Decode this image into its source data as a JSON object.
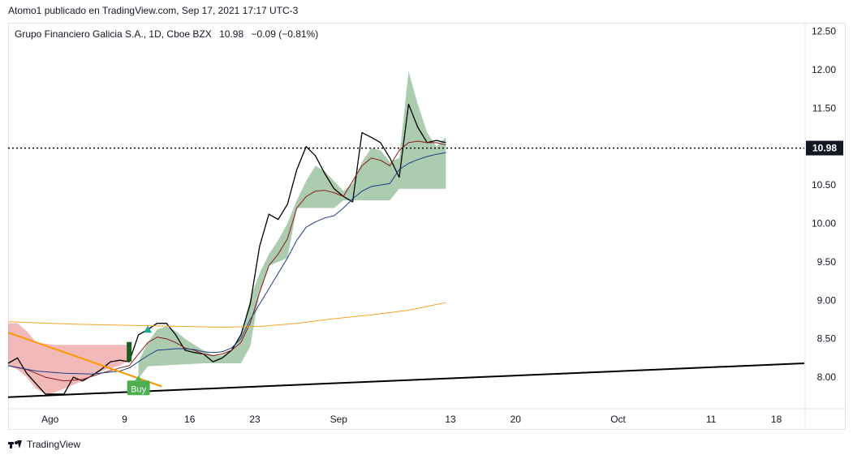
{
  "header": {
    "published_by": "Atomo1 publicado en TradingView.com, Sep 17, 2021 17:17 UTC-3"
  },
  "legend": {
    "symbol": "Grupo Financiero Galicia S.A., 1D, Cboe BZX",
    "last": "10.98",
    "change": "−0.09 (−0.81%)"
  },
  "footer": {
    "brand": "TradingView",
    "logo_icon": "tradingview-logo-icon"
  },
  "chart_data": {
    "type": "line",
    "ylim": [
      7.6,
      12.6
    ],
    "y_ticks": [
      "8.00",
      "8.50",
      "9.00",
      "9.50",
      "10.00",
      "10.50",
      "11.00",
      "11.50",
      "12.00",
      "12.50"
    ],
    "x_tick_labels": [
      {
        "label": "Ago",
        "day": 0
      },
      {
        "label": "9",
        "day": 8
      },
      {
        "label": "16",
        "day": 15
      },
      {
        "label": "23",
        "day": 22
      },
      {
        "label": "Sep",
        "day": 31
      },
      {
        "label": "13",
        "day": 43
      },
      {
        "label": "20",
        "day": 50
      },
      {
        "label": "Oct",
        "day": 61
      },
      {
        "label": "11",
        "day": 71
      },
      {
        "label": "18",
        "day": 78
      }
    ],
    "xlim": [
      -4.5,
      81
    ],
    "last_price": {
      "value": 10.98,
      "label": "10.98",
      "color": "#131722"
    },
    "series": [
      {
        "role": "price",
        "color": "#000000",
        "points": [
          [
            -4.5,
            8.18
          ],
          [
            -3.5,
            8.25
          ],
          [
            -2.5,
            8.05
          ],
          [
            -0.5,
            7.78
          ],
          [
            1.5,
            7.78
          ],
          [
            2.5,
            8.0
          ],
          [
            3.5,
            7.95
          ],
          [
            4.5,
            8.02
          ],
          [
            5.5,
            8.1
          ],
          [
            6.5,
            8.2
          ],
          [
            7.5,
            8.22
          ],
          [
            8.5,
            8.2
          ],
          [
            9.5,
            8.55
          ],
          [
            10.5,
            8.62
          ],
          [
            11.5,
            8.7
          ],
          [
            12.5,
            8.7
          ],
          [
            13.5,
            8.55
          ],
          [
            14.5,
            8.35
          ],
          [
            15.5,
            8.32
          ],
          [
            16.5,
            8.3
          ],
          [
            17.5,
            8.2
          ],
          [
            18.5,
            8.25
          ],
          [
            19.5,
            8.35
          ],
          [
            20.5,
            8.55
          ],
          [
            21.5,
            8.95
          ],
          [
            22.5,
            9.7
          ],
          [
            23.5,
            10.12
          ],
          [
            24.5,
            10.05
          ],
          [
            25.5,
            10.25
          ],
          [
            26.5,
            10.7
          ],
          [
            27.5,
            11.0
          ],
          [
            28.5,
            10.88
          ],
          [
            29.5,
            10.65
          ],
          [
            30.5,
            10.45
          ],
          [
            31.5,
            10.35
          ],
          [
            32.5,
            10.28
          ],
          [
            33.5,
            11.18
          ],
          [
            34.5,
            11.12
          ],
          [
            35.5,
            11.05
          ],
          [
            36.5,
            10.85
          ],
          [
            37.5,
            10.6
          ],
          [
            38.5,
            11.55
          ],
          [
            39.5,
            11.25
          ],
          [
            40.5,
            11.05
          ],
          [
            41.5,
            11.08
          ],
          [
            42.5,
            11.05
          ]
        ]
      },
      {
        "role": "moving-average-fast",
        "color": "#8b1a1a",
        "points": [
          [
            -4.5,
            8.15
          ],
          [
            -2.5,
            8.1
          ],
          [
            -0.5,
            8.0
          ],
          [
            1.5,
            7.95
          ],
          [
            3.5,
            7.97
          ],
          [
            5.5,
            8.05
          ],
          [
            7.5,
            8.12
          ],
          [
            8.5,
            8.15
          ],
          [
            9.5,
            8.3
          ],
          [
            10.5,
            8.45
          ],
          [
            11.5,
            8.52
          ],
          [
            12.5,
            8.5
          ],
          [
            13.5,
            8.45
          ],
          [
            14.5,
            8.38
          ],
          [
            15.5,
            8.35
          ],
          [
            16.5,
            8.3
          ],
          [
            17.5,
            8.28
          ],
          [
            18.5,
            8.3
          ],
          [
            19.5,
            8.35
          ],
          [
            20.5,
            8.45
          ],
          [
            21.5,
            8.7
          ],
          [
            22.5,
            9.1
          ],
          [
            23.5,
            9.45
          ],
          [
            24.5,
            9.6
          ],
          [
            25.5,
            9.8
          ],
          [
            26.5,
            10.2
          ],
          [
            27.5,
            10.35
          ],
          [
            28.5,
            10.42
          ],
          [
            29.5,
            10.43
          ],
          [
            30.5,
            10.4
          ],
          [
            31.5,
            10.35
          ],
          [
            32.5,
            10.55
          ],
          [
            33.5,
            10.75
          ],
          [
            34.5,
            10.85
          ],
          [
            35.5,
            10.82
          ],
          [
            36.5,
            10.75
          ],
          [
            37.5,
            10.95
          ],
          [
            38.5,
            11.05
          ],
          [
            39.5,
            11.07
          ],
          [
            40.5,
            11.05
          ],
          [
            41.5,
            11.05
          ],
          [
            42.5,
            11.02
          ]
        ]
      },
      {
        "role": "moving-average-slow",
        "color": "#1f3c88",
        "points": [
          [
            -4.5,
            8.15
          ],
          [
            -1.5,
            8.08
          ],
          [
            1.5,
            8.05
          ],
          [
            4.5,
            8.04
          ],
          [
            7.5,
            8.08
          ],
          [
            8.5,
            8.12
          ],
          [
            9.5,
            8.2
          ],
          [
            10.5,
            8.28
          ],
          [
            11.5,
            8.35
          ],
          [
            12.5,
            8.36
          ],
          [
            13.5,
            8.37
          ],
          [
            14.5,
            8.37
          ],
          [
            15.5,
            8.36
          ],
          [
            16.5,
            8.33
          ],
          [
            17.5,
            8.32
          ],
          [
            18.5,
            8.33
          ],
          [
            19.5,
            8.38
          ],
          [
            20.5,
            8.5
          ],
          [
            21.5,
            8.75
          ],
          [
            22.5,
            8.95
          ],
          [
            23.5,
            9.15
          ],
          [
            24.5,
            9.35
          ],
          [
            25.5,
            9.55
          ],
          [
            26.5,
            9.78
          ],
          [
            27.5,
            9.95
          ],
          [
            28.5,
            10.02
          ],
          [
            29.5,
            10.07
          ],
          [
            30.5,
            10.1
          ],
          [
            31.5,
            10.2
          ],
          [
            32.5,
            10.32
          ],
          [
            33.5,
            10.42
          ],
          [
            34.5,
            10.48
          ],
          [
            35.5,
            10.5
          ],
          [
            36.5,
            10.52
          ],
          [
            37.5,
            10.7
          ],
          [
            38.5,
            10.78
          ],
          [
            39.5,
            10.83
          ],
          [
            40.5,
            10.87
          ],
          [
            41.5,
            10.9
          ],
          [
            42.5,
            10.92
          ]
        ]
      },
      {
        "role": "moving-average-long",
        "color": "#f7a428",
        "points": [
          [
            -4.5,
            8.72
          ],
          [
            2.5,
            8.69
          ],
          [
            10.5,
            8.67
          ],
          [
            18.5,
            8.65
          ],
          [
            22.5,
            8.66
          ],
          [
            26.5,
            8.7
          ],
          [
            30.5,
            8.76
          ],
          [
            34.5,
            8.81
          ],
          [
            38.5,
            8.87
          ],
          [
            42.5,
            8.97
          ]
        ]
      },
      {
        "role": "trendline-support",
        "color": "#000000",
        "points": [
          [
            -4.5,
            7.74
          ],
          [
            81,
            8.18
          ]
        ]
      },
      {
        "role": "trendline-resistance",
        "color": "#ff9800",
        "points": [
          [
            -4.5,
            8.58
          ],
          [
            12,
            7.88
          ]
        ]
      }
    ],
    "bands": [
      {
        "role": "bullish-cloud-1",
        "color": "#5a9a60",
        "upper": [
          [
            9.5,
            8.2
          ],
          [
            10.5,
            8.45
          ],
          [
            11.5,
            8.62
          ],
          [
            12.5,
            8.66
          ],
          [
            13.5,
            8.6
          ],
          [
            14.5,
            8.5
          ],
          [
            15.5,
            8.42
          ],
          [
            16.5,
            8.35
          ],
          [
            17.5,
            8.28
          ],
          [
            18.5,
            8.28
          ],
          [
            19.5,
            8.35
          ],
          [
            20.5,
            8.55
          ],
          [
            21.5,
            9.02
          ],
          [
            22.5,
            9.35
          ],
          [
            23.5,
            9.6
          ],
          [
            24.5,
            9.78
          ],
          [
            25.5,
            10.0
          ],
          [
            26.5,
            10.3
          ],
          [
            27.5,
            10.55
          ],
          [
            28.5,
            10.75
          ],
          [
            29.5,
            10.68
          ],
          [
            30.5,
            10.55
          ],
          [
            31.5,
            10.42
          ],
          [
            32.5,
            10.52
          ],
          [
            33.5,
            10.8
          ],
          [
            34.5,
            10.98
          ],
          [
            35.5,
            10.95
          ],
          [
            36.5,
            10.8
          ],
          [
            37.5,
            10.85
          ],
          [
            38.5,
            11.98
          ],
          [
            39.5,
            11.55
          ],
          [
            40.5,
            11.18
          ],
          [
            41.5,
            11.0
          ],
          [
            42.5,
            11.12
          ]
        ],
        "lower": [
          [
            42.5,
            10.45
          ],
          [
            37.5,
            10.45
          ],
          [
            36.5,
            10.3
          ],
          [
            31.5,
            10.3
          ],
          [
            30.5,
            10.2
          ],
          [
            26.5,
            10.2
          ],
          [
            25.5,
            9.55
          ],
          [
            24.5,
            9.5
          ],
          [
            23.5,
            9.45
          ],
          [
            22.5,
            9.1
          ],
          [
            21.5,
            8.4
          ],
          [
            20.5,
            8.18
          ],
          [
            16.5,
            8.18
          ],
          [
            10.5,
            8.14
          ],
          [
            9.5,
            7.98
          ]
        ]
      },
      {
        "role": "bearish-cloud",
        "color": "#e57373",
        "upper": [
          [
            -4.5,
            8.7
          ],
          [
            -3.5,
            8.7
          ],
          [
            -2.5,
            8.6
          ],
          [
            -1.5,
            8.45
          ],
          [
            0.5,
            8.42
          ],
          [
            8.5,
            8.42
          ]
        ],
        "lower": [
          [
            8.5,
            8.22
          ],
          [
            7.5,
            8.15
          ],
          [
            5.5,
            8.08
          ],
          [
            3.5,
            7.95
          ],
          [
            1.5,
            7.85
          ],
          [
            0.5,
            7.8
          ],
          [
            -0.5,
            7.78
          ],
          [
            -1.5,
            7.85
          ],
          [
            -2.5,
            8.0
          ],
          [
            -3.5,
            8.1
          ],
          [
            -4.5,
            8.15
          ]
        ]
      }
    ],
    "markers": [
      {
        "role": "buy-label",
        "label": "Buy",
        "day": 9.5,
        "value": 7.85,
        "color": "#4caf50"
      },
      {
        "role": "signal-triangle",
        "day": 10.5,
        "value": 8.62,
        "color": "#26a69a"
      },
      {
        "role": "signal-box",
        "day": 8.5,
        "value": 8.32,
        "color": "#1b5e20"
      }
    ]
  }
}
